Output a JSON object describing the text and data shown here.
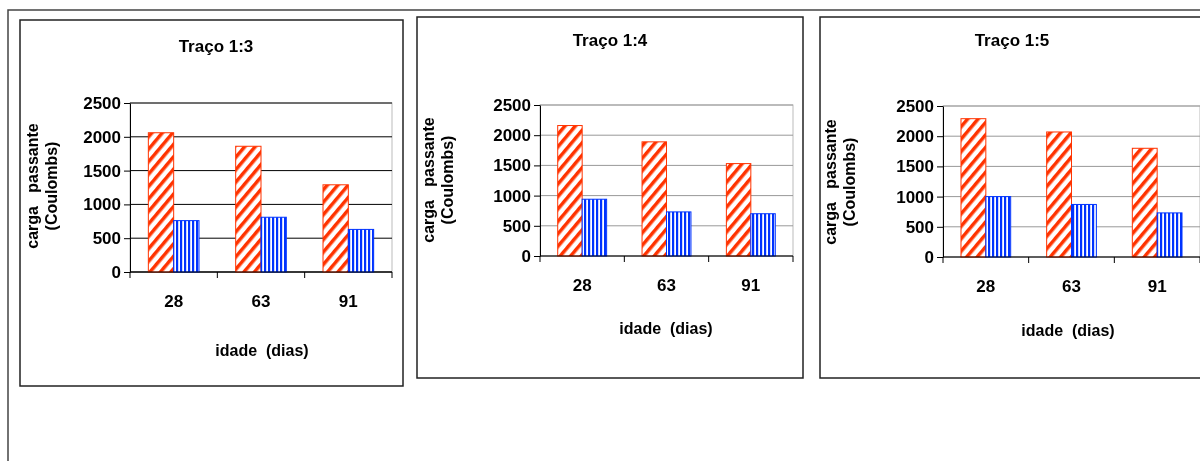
{
  "chart_data": [
    {
      "type": "bar",
      "title": "Traço 1:3",
      "xlabel": "idade  (dias)",
      "ylabel": "carga   passante\n(Coulombs)",
      "categories": [
        "28",
        "63",
        "91"
      ],
      "ylim": [
        0,
        2500
      ],
      "yticks": [
        0,
        500,
        1000,
        1500,
        2000,
        2500
      ],
      "grid": "y",
      "series": [
        {
          "color": "#ff3300",
          "values": [
            2060,
            1860,
            1290
          ]
        },
        {
          "color": "#0033ff",
          "values": [
            760,
            810,
            630
          ]
        }
      ]
    },
    {
      "type": "bar",
      "title": "Traço 1:4",
      "xlabel": "idade  (dias)",
      "ylabel": "carga   passante\n(Coulombs)",
      "categories": [
        "28",
        "63",
        "91"
      ],
      "ylim": [
        0,
        2500
      ],
      "yticks": [
        0,
        500,
        1000,
        1500,
        2000,
        2500
      ],
      "grid": "y",
      "series": [
        {
          "color": "#ff3300",
          "values": [
            2160,
            1890,
            1530
          ]
        },
        {
          "color": "#0033ff",
          "values": [
            940,
            730,
            700
          ]
        }
      ]
    },
    {
      "type": "bar",
      "title": "Traço 1:5",
      "xlabel": "idade  (dias)",
      "ylabel": "carga   passante\n(Coulombs)",
      "categories": [
        "28",
        "63",
        "91"
      ],
      "ylim": [
        0,
        2500
      ],
      "yticks": [
        0,
        500,
        1000,
        1500,
        2000,
        2500
      ],
      "grid": "y",
      "series": [
        {
          "color": "#ff3300",
          "values": [
            2290,
            2070,
            1800
          ]
        },
        {
          "color": "#0033ff",
          "values": [
            1000,
            870,
            730
          ]
        }
      ]
    }
  ]
}
